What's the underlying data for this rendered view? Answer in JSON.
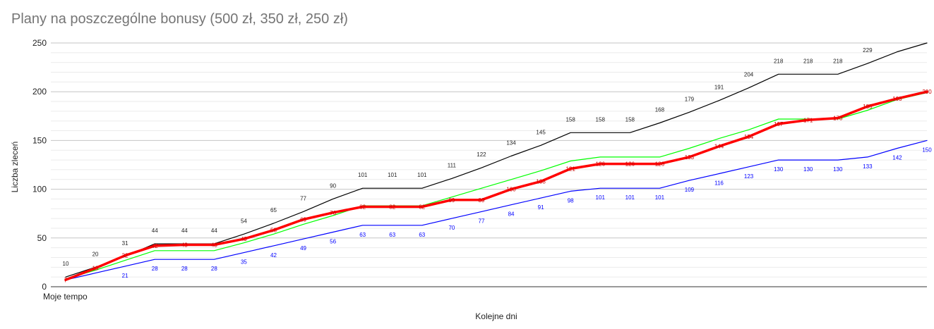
{
  "chart_data": {
    "type": "line",
    "title": "Plany na poszczególne bonusy (500 zł, 350 zł, 250 zł)",
    "xlabel": "Kolejne dni",
    "ylabel": "Liczba zleceń",
    "x_first_label": "Moje tempo",
    "ylim": [
      0,
      250
    ],
    "yticks": [
      0,
      50,
      100,
      150,
      200,
      250
    ],
    "grid": true,
    "series": [
      {
        "color": "#000000",
        "values": [
          10,
          20,
          31,
          44,
          44,
          44,
          54,
          65,
          77,
          90,
          101,
          101,
          101,
          111,
          122,
          134,
          145,
          158,
          158,
          158,
          168,
          179,
          191,
          204,
          218,
          218,
          218,
          229,
          241,
          250
        ],
        "labels": [
          "10",
          "20",
          "31",
          "44",
          "44",
          "44",
          "54",
          "65",
          "77",
          "90",
          "101",
          "101",
          "101",
          "111",
          "122",
          "134",
          "145",
          "158",
          "158",
          "158",
          "168",
          "179",
          "191",
          "204",
          "218",
          "218",
          "218",
          "229",
          "",
          ""
        ]
      },
      {
        "color": "#00ff00",
        "values": [
          8,
          17,
          27,
          37,
          37,
          37,
          45,
          54,
          64,
          73,
          83,
          83,
          83,
          92,
          101,
          110,
          119,
          129,
          133,
          133,
          133,
          142,
          152,
          161,
          172,
          172,
          172,
          181,
          192,
          199
        ],
        "labels": []
      },
      {
        "color": "#0000ff",
        "values": [
          7,
          14,
          21,
          28,
          28,
          28,
          35,
          42,
          49,
          56,
          63,
          63,
          63,
          70,
          77,
          84,
          91,
          98,
          101,
          101,
          101,
          109,
          116,
          123,
          130,
          130,
          130,
          133,
          142,
          150
        ],
        "labels": [
          "",
          "",
          "21",
          "28",
          "28",
          "28",
          "35",
          "42",
          "49",
          "56",
          "63",
          "63",
          "63",
          "70",
          "77",
          "84",
          "91",
          "98",
          "101",
          "101",
          "101",
          "109",
          "116",
          "123",
          "130",
          "130",
          "130",
          "133",
          "142",
          "150"
        ]
      },
      {
        "color": "#ff0000",
        "values": [
          7,
          19,
          32,
          42,
          43,
          43,
          49,
          58,
          69,
          76,
          82,
          82,
          82,
          89,
          89,
          100,
          108,
          121,
          126,
          126,
          126,
          133,
          144,
          154,
          167,
          171,
          173,
          185,
          193,
          200
        ],
        "labels": [
          "7",
          "19",
          "32",
          "42",
          "43",
          "43",
          "49",
          "58",
          "69",
          "76",
          "82",
          "82",
          "82",
          "89",
          "89",
          "100",
          "108",
          "121",
          "126",
          "126",
          "126",
          "133",
          "144",
          "154",
          "167",
          "171",
          "173",
          "185",
          "193",
          "200"
        ]
      }
    ]
  }
}
